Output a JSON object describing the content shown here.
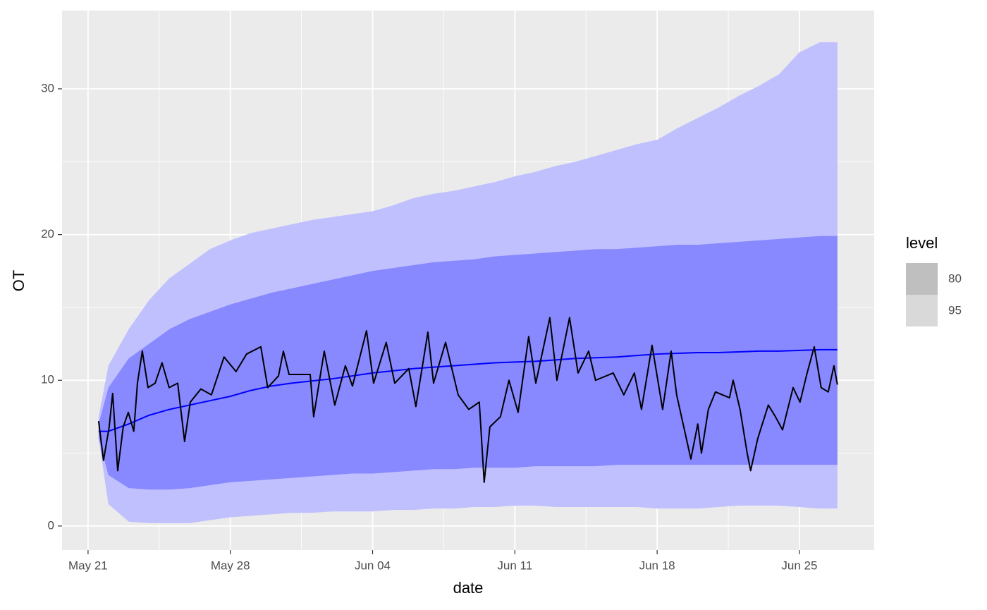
{
  "chart_data": {
    "type": "fan",
    "xlabel": "date",
    "ylabel": "OT",
    "xlim": [
      -1.28,
      38.68
    ],
    "xticks": [
      {
        "value": 0,
        "label": "May 21"
      },
      {
        "value": 7,
        "label": "May 28"
      },
      {
        "value": 14,
        "label": "Jun 04"
      },
      {
        "value": 21,
        "label": "Jun 11"
      },
      {
        "value": 28,
        "label": "Jun 18"
      },
      {
        "value": 35,
        "label": "Jun 25"
      }
    ],
    "ylim": [
      -1.65,
      35.37
    ],
    "yticks": [
      0,
      10,
      20,
      30
    ],
    "grid": true,
    "legend": {
      "title": "level",
      "position": "right"
    },
    "x": [
      0.52,
      1,
      2,
      3,
      4,
      5,
      6,
      7,
      8,
      9,
      10,
      11,
      12,
      13,
      14,
      15,
      16,
      17,
      18,
      19,
      20,
      21,
      22,
      23,
      24,
      25,
      26,
      27,
      28,
      29,
      30,
      31,
      32,
      33,
      34,
      35,
      36,
      36.87
    ],
    "bands": [
      {
        "name": "80",
        "color": "#8888ff",
        "key_color": "#bfbfbf",
        "lower": [
          6.0,
          3.5,
          2.6,
          2.5,
          2.5,
          2.6,
          2.8,
          3.0,
          3.1,
          3.2,
          3.3,
          3.4,
          3.5,
          3.6,
          3.6,
          3.7,
          3.8,
          3.9,
          3.9,
          4.0,
          4.0,
          4.0,
          4.1,
          4.1,
          4.1,
          4.1,
          4.2,
          4.2,
          4.2,
          4.2,
          4.2,
          4.2,
          4.2,
          4.2,
          4.2,
          4.2,
          4.2,
          4.2
        ],
        "upper": [
          7.0,
          9.5,
          11.5,
          12.5,
          13.5,
          14.2,
          14.7,
          15.2,
          15.6,
          16.0,
          16.3,
          16.6,
          16.9,
          17.2,
          17.5,
          17.7,
          17.9,
          18.1,
          18.2,
          18.3,
          18.5,
          18.6,
          18.7,
          18.8,
          18.9,
          19.0,
          19.0,
          19.1,
          19.2,
          19.3,
          19.3,
          19.4,
          19.5,
          19.6,
          19.7,
          19.8,
          19.9,
          19.9
        ]
      },
      {
        "name": "95",
        "color": "#c0c0ff",
        "key_color": "#d9d9d9",
        "lower": [
          6.0,
          1.5,
          0.3,
          0.2,
          0.2,
          0.2,
          0.4,
          0.6,
          0.7,
          0.8,
          0.9,
          0.9,
          1.0,
          1.0,
          1.0,
          1.1,
          1.1,
          1.2,
          1.2,
          1.3,
          1.3,
          1.4,
          1.4,
          1.3,
          1.3,
          1.3,
          1.3,
          1.3,
          1.2,
          1.2,
          1.2,
          1.3,
          1.4,
          1.4,
          1.4,
          1.3,
          1.2,
          1.2
        ],
        "upper": [
          7.5,
          11.0,
          13.5,
          15.5,
          17.0,
          18.0,
          19.0,
          19.6,
          20.1,
          20.4,
          20.7,
          21.0,
          21.2,
          21.4,
          21.6,
          22.0,
          22.5,
          22.8,
          23.0,
          23.3,
          23.6,
          24.0,
          24.3,
          24.7,
          25.0,
          25.4,
          25.8,
          26.2,
          26.5,
          27.3,
          28.0,
          28.7,
          29.5,
          30.2,
          31.0,
          32.5,
          33.2,
          33.2
        ]
      }
    ],
    "series": [
      {
        "color": "#0000ff",
        "values": [
          6.5,
          6.5,
          7.0,
          7.6,
          8.0,
          8.3,
          8.6,
          8.9,
          9.3,
          9.6,
          9.8,
          9.95,
          10.1,
          10.3,
          10.5,
          10.65,
          10.8,
          10.9,
          11.0,
          11.1,
          11.2,
          11.25,
          11.3,
          11.4,
          11.5,
          11.55,
          11.6,
          11.7,
          11.8,
          11.85,
          11.9,
          11.9,
          11.95,
          12.0,
          12.0,
          12.05,
          12.1,
          12.1
        ]
      },
      {
        "color": "#000000",
        "x": [
          0.52,
          0.76,
          1.04,
          1.21,
          1.46,
          1.73,
          1.98,
          2.25,
          2.43,
          2.67,
          2.95,
          3.3,
          3.64,
          3.99,
          4.41,
          4.75,
          5.03,
          5.55,
          6.07,
          6.69,
          7.28,
          7.8,
          8.5,
          8.84,
          9.37,
          9.61,
          9.89,
          10.93,
          11.1,
          11.62,
          12.14,
          12.66,
          13.01,
          13.7,
          14.05,
          14.67,
          15.09,
          15.78,
          16.13,
          16.72,
          17.0,
          17.59,
          18.21,
          18.73,
          19.25,
          19.49,
          19.77,
          20.29,
          20.71,
          21.16,
          21.68,
          22.03,
          22.72,
          23.07,
          23.69,
          24.11,
          24.63,
          24.97,
          25.84,
          26.36,
          26.88,
          27.23,
          27.75,
          28.27,
          28.69,
          28.96,
          29.66,
          30.0,
          30.18,
          30.52,
          30.87,
          31.56,
          31.74,
          32.08,
          32.43,
          32.6,
          32.95,
          33.47,
          33.82,
          34.17,
          34.69,
          35.03,
          35.38,
          35.73,
          36.07,
          36.42,
          36.7,
          36.87
        ],
        "values": [
          7.2,
          4.5,
          6.8,
          9.1,
          3.8,
          6.8,
          7.8,
          6.5,
          9.8,
          12.0,
          9.5,
          9.8,
          11.2,
          9.5,
          9.8,
          5.8,
          8.5,
          9.4,
          9.0,
          11.6,
          10.6,
          11.8,
          12.3,
          9.5,
          10.3,
          12.0,
          10.4,
          10.4,
          7.5,
          12.0,
          8.3,
          11.0,
          9.6,
          13.4,
          9.8,
          12.6,
          9.8,
          10.8,
          8.2,
          13.3,
          9.8,
          12.6,
          9.0,
          8.0,
          8.5,
          3.0,
          6.8,
          7.5,
          10.0,
          7.8,
          13.0,
          9.8,
          14.3,
          10.0,
          14.3,
          10.5,
          12.0,
          10.0,
          10.5,
          9.0,
          10.5,
          8.0,
          12.4,
          8.0,
          12.0,
          9.0,
          4.6,
          7.0,
          5.0,
          8.0,
          9.2,
          8.8,
          10.0,
          8.0,
          5.0,
          3.8,
          6.0,
          8.3,
          7.5,
          6.6,
          9.5,
          8.5,
          10.5,
          12.3,
          9.5,
          9.2,
          11.0,
          9.7
        ]
      }
    ]
  }
}
